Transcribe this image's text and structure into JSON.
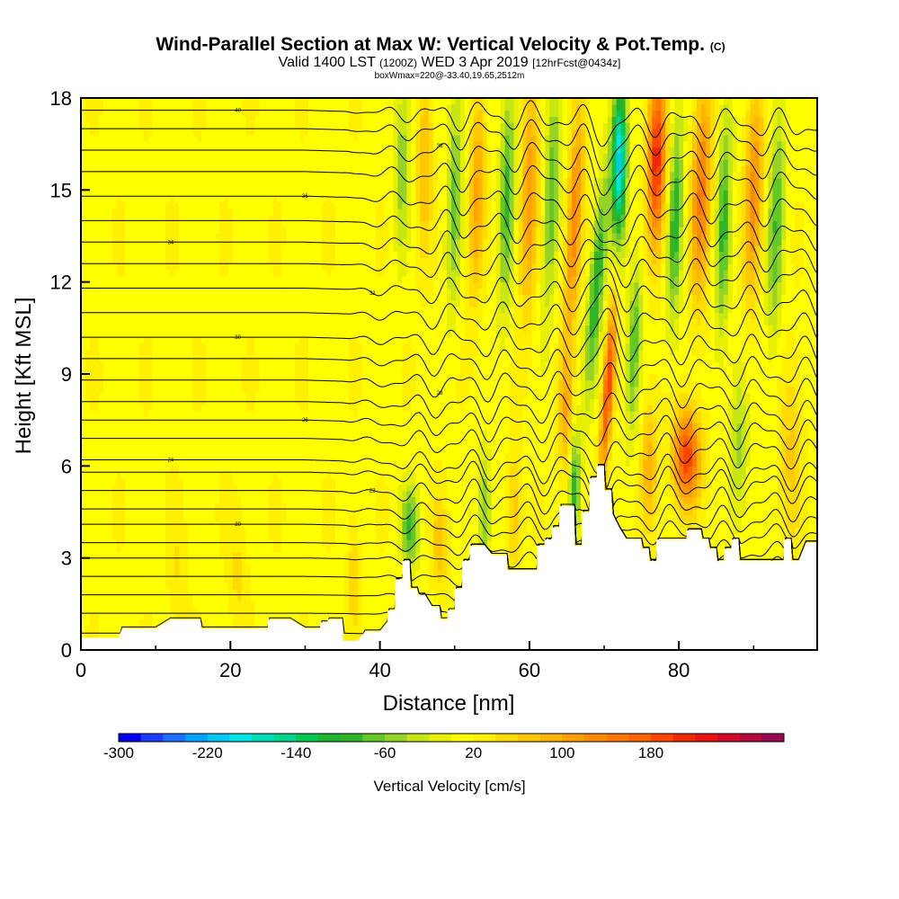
{
  "chart_data": {
    "type": "heatmap",
    "title": "Wind-Parallel Section at Max W: Vertical Velocity & Pot.Temp.",
    "title_mark": "(C)",
    "subtitle_parts": [
      "Valid 1400 LST",
      "(1200Z)",
      "WED 3 Apr 2019",
      "[12hrFcst@0434z]"
    ],
    "subtitle2": "boxWmax=220@-33.40,19.65,2512m",
    "xlabel": "Distance [nm]",
    "ylabel": "Height [Kft MSL]",
    "xlim": [
      0,
      98.5
    ],
    "ylim": [
      0,
      18
    ],
    "x_ticks": [
      0,
      20,
      40,
      60,
      80
    ],
    "y_ticks": [
      0,
      3,
      6,
      9,
      12,
      15,
      18
    ],
    "colorbar": {
      "label": "Vertical Velocity [cm/s]",
      "tick_labels": [
        "-300",
        "-220",
        "-140",
        "-60",
        "20",
        "100",
        "180"
      ],
      "tick_values": [
        -300,
        -220,
        -140,
        -60,
        20,
        100,
        180
      ],
      "bins_min": -300,
      "bin_width": 20,
      "colors": [
        "#0000f0",
        "#1e3cff",
        "#1e6eff",
        "#00a0ff",
        "#00c8f0",
        "#00e6e6",
        "#00dcb4",
        "#00d28c",
        "#00c850",
        "#1eb432",
        "#32b428",
        "#64c828",
        "#96d228",
        "#c8e614",
        "#e6f000",
        "#ffff00",
        "#fff000",
        "#ffdc00",
        "#ffc800",
        "#ffb400",
        "#ffa000",
        "#ff8c00",
        "#ff7800",
        "#ff6400",
        "#ff4600",
        "#f02800",
        "#e61414",
        "#d20a28",
        "#b40a3c",
        "#960a50"
      ]
    },
    "terrain_kft": [
      [
        0,
        0.4
      ],
      [
        3,
        0.4
      ],
      [
        5,
        0.4
      ],
      [
        5.5,
        0.7
      ],
      [
        10,
        0.7
      ],
      [
        12,
        1.0
      ],
      [
        16,
        1.0
      ],
      [
        16,
        0.7
      ],
      [
        25,
        0.7
      ],
      [
        25,
        1.0
      ],
      [
        28,
        1.0
      ],
      [
        30,
        0.7
      ],
      [
        32,
        0.7
      ],
      [
        32,
        0.9
      ],
      [
        33,
        0.9
      ],
      [
        33,
        1.0
      ],
      [
        35,
        1.0
      ],
      [
        35,
        0.3
      ],
      [
        37,
        0.3
      ],
      [
        38,
        0.6
      ],
      [
        40,
        0.6
      ],
      [
        41,
        0.9
      ],
      [
        41,
        1.3
      ],
      [
        42,
        1.3
      ],
      [
        42,
        2.3
      ],
      [
        43,
        2.3
      ],
      [
        43,
        2.9
      ],
      [
        44,
        2.9
      ],
      [
        44,
        2.0
      ],
      [
        45,
        2.0
      ],
      [
        45,
        1.8
      ],
      [
        46,
        1.8
      ],
      [
        47,
        1.4
      ],
      [
        48,
        1.4
      ],
      [
        48,
        1.0
      ],
      [
        49,
        1.0
      ],
      [
        49,
        1.3
      ],
      [
        50,
        1.3
      ],
      [
        50,
        2.0
      ],
      [
        51,
        2.0
      ],
      [
        51,
        2.9
      ],
      [
        52,
        2.9
      ],
      [
        52,
        3.4
      ],
      [
        54,
        3.4
      ],
      [
        55,
        3.1
      ],
      [
        57,
        3.1
      ],
      [
        57,
        2.6
      ],
      [
        58,
        2.6
      ],
      [
        59,
        2.6
      ],
      [
        60,
        2.6
      ],
      [
        61,
        2.6
      ],
      [
        61,
        3.4
      ],
      [
        62,
        3.4
      ],
      [
        62,
        3.6
      ],
      [
        63,
        3.6
      ],
      [
        63,
        4.0
      ],
      [
        64,
        4.0
      ],
      [
        64,
        4.7
      ],
      [
        65,
        4.7
      ],
      [
        66,
        4.7
      ],
      [
        66,
        3.4
      ],
      [
        67,
        3.4
      ],
      [
        67,
        4.5
      ],
      [
        68,
        4.5
      ],
      [
        68,
        5.6
      ],
      [
        69,
        5.6
      ],
      [
        69,
        6.0
      ],
      [
        70,
        6.0
      ],
      [
        70,
        5.2
      ],
      [
        71,
        5.2
      ],
      [
        71,
        4.5
      ],
      [
        72,
        4.0
      ],
      [
        73,
        3.6
      ],
      [
        75,
        3.6
      ],
      [
        75,
        3.3
      ],
      [
        76,
        3.3
      ],
      [
        76,
        2.9
      ],
      [
        77,
        2.9
      ],
      [
        77,
        3.6
      ],
      [
        81,
        3.6
      ],
      [
        81,
        3.9
      ],
      [
        83,
        3.9
      ],
      [
        83,
        3.6
      ],
      [
        84,
        3.6
      ],
      [
        84,
        3.3
      ],
      [
        85,
        3.3
      ],
      [
        85,
        2.9
      ],
      [
        86,
        2.9
      ],
      [
        86,
        3.3
      ],
      [
        87,
        3.3
      ],
      [
        87,
        3.6
      ],
      [
        88,
        3.6
      ],
      [
        88,
        2.9
      ],
      [
        94,
        2.9
      ],
      [
        94,
        3.6
      ],
      [
        95,
        3.6
      ],
      [
        95,
        2.9
      ],
      [
        96,
        2.9
      ],
      [
        97,
        3.5
      ],
      [
        98.5,
        3.5
      ]
    ],
    "w_features": [
      {
        "x": 77,
        "y": 16,
        "w": 200,
        "sx": 1.2,
        "sy": 2.8,
        "tilt": 0.05
      },
      {
        "x": 72,
        "y": 16,
        "w": -220,
        "sx": 1.0,
        "sy": 2.6,
        "tilt": 0.05
      },
      {
        "x": 70.5,
        "y": 8.5,
        "w": 180,
        "sx": 0.7,
        "sy": 2.8,
        "tilt": 0.25
      },
      {
        "x": 69,
        "y": 12,
        "w": -120,
        "sx": 1.0,
        "sy": 3.5,
        "tilt": 0.3
      },
      {
        "x": 81,
        "y": 6.3,
        "w": 180,
        "sx": 1.8,
        "sy": 1.5,
        "tilt": 0
      },
      {
        "x": 83,
        "y": 15,
        "w": 130,
        "sx": 1.3,
        "sy": 3.5,
        "tilt": 0.1
      },
      {
        "x": 86,
        "y": 14,
        "w": -100,
        "sx": 1.0,
        "sy": 4,
        "tilt": 0.1
      },
      {
        "x": 90,
        "y": 15,
        "w": 110,
        "sx": 1.2,
        "sy": 3.5,
        "tilt": 0.1
      },
      {
        "x": 93,
        "y": 14,
        "w": -90,
        "sx": 1.1,
        "sy": 4,
        "tilt": 0.1
      },
      {
        "x": 79.5,
        "y": 14,
        "w": -110,
        "sx": 1.0,
        "sy": 3.5,
        "tilt": 0.1
      },
      {
        "x": 74,
        "y": 10,
        "w": -90,
        "sx": 0.9,
        "sy": 3,
        "tilt": 0.15
      },
      {
        "x": 66,
        "y": 14,
        "w": 120,
        "sx": 1.0,
        "sy": 4,
        "tilt": 0.2
      },
      {
        "x": 63,
        "y": 15,
        "w": -90,
        "sx": 1.0,
        "sy": 4,
        "tilt": 0.15
      },
      {
        "x": 60,
        "y": 15,
        "w": 100,
        "sx": 1.1,
        "sy": 4,
        "tilt": 0.1
      },
      {
        "x": 57,
        "y": 15,
        "w": -100,
        "sx": 1.0,
        "sy": 4,
        "tilt": 0.1
      },
      {
        "x": 53,
        "y": 15,
        "w": 90,
        "sx": 1.0,
        "sy": 3.5,
        "tilt": 0.1
      },
      {
        "x": 50,
        "y": 15,
        "w": -80,
        "sx": 1.0,
        "sy": 4,
        "tilt": 0.1
      },
      {
        "x": 46,
        "y": 16,
        "w": 70,
        "sx": 1.0,
        "sy": 3,
        "tilt": 0.05
      },
      {
        "x": 43,
        "y": 16,
        "w": -70,
        "sx": 1.0,
        "sy": 3,
        "tilt": 0.05
      },
      {
        "x": 44,
        "y": 4.0,
        "w": -100,
        "sx": 1.2,
        "sy": 1.3,
        "tilt": 0
      },
      {
        "x": 48,
        "y": 3.5,
        "w": 60,
        "sx": 1.0,
        "sy": 1.5,
        "tilt": 0
      },
      {
        "x": 54,
        "y": 4.5,
        "w": -80,
        "sx": 0.9,
        "sy": 2,
        "tilt": 0
      },
      {
        "x": 58,
        "y": 4.5,
        "w": 60,
        "sx": 0.9,
        "sy": 2,
        "tilt": 0
      },
      {
        "x": 66,
        "y": 5.5,
        "w": -110,
        "sx": 0.8,
        "sy": 2,
        "tilt": 0
      },
      {
        "x": 65,
        "y": 7.5,
        "w": 80,
        "sx": 1.0,
        "sy": 2,
        "tilt": 0
      },
      {
        "x": 36.5,
        "y": 2.5,
        "w": 40,
        "sx": 0.8,
        "sy": 2,
        "tilt": 0
      },
      {
        "x": 21,
        "y": 2.5,
        "w": 30,
        "sx": 1.2,
        "sy": 2,
        "tilt": 0
      },
      {
        "x": 13,
        "y": 2.5,
        "w": 25,
        "sx": 1.2,
        "sy": 2,
        "tilt": 0
      },
      {
        "x": 88,
        "y": 6.5,
        "w": -60,
        "sx": 1.2,
        "sy": 2.5,
        "tilt": 0
      },
      {
        "x": 95,
        "y": 6.5,
        "w": 50,
        "sx": 1.5,
        "sy": 3,
        "tilt": 0
      },
      {
        "x": 76,
        "y": 6,
        "w": 80,
        "sx": 1.0,
        "sy": 2,
        "tilt": 0
      }
    ],
    "theta_contours": [
      {
        "y0": 0.55,
        "amp": 0.15,
        "label": ""
      },
      {
        "y0": 1.2,
        "amp": 0.3,
        "label": ""
      },
      {
        "y0": 1.8,
        "amp": 0.4,
        "label": ""
      },
      {
        "y0": 2.4,
        "amp": 0.5,
        "label": ""
      },
      {
        "y0": 3.0,
        "amp": 0.6,
        "label": ""
      },
      {
        "y0": 3.5,
        "amp": 0.7,
        "label": ""
      },
      {
        "y0": 4.1,
        "amp": 0.8,
        "label": "20"
      },
      {
        "y0": 4.6,
        "amp": 0.9,
        "label": ""
      },
      {
        "y0": 5.2,
        "amp": 1.0,
        "label": "22"
      },
      {
        "y0": 5.8,
        "amp": 1.0,
        "label": ""
      },
      {
        "y0": 6.2,
        "amp": 1.0,
        "label": "24"
      },
      {
        "y0": 6.9,
        "amp": 1.0,
        "label": ""
      },
      {
        "y0": 7.5,
        "amp": 1.0,
        "label": "26"
      },
      {
        "y0": 8.1,
        "amp": 1.0,
        "label": ""
      },
      {
        "y0": 8.8,
        "amp": 1.0,
        "label": "28"
      },
      {
        "y0": 9.5,
        "amp": 1.0,
        "label": ""
      },
      {
        "y0": 10.2,
        "amp": 1.0,
        "label": "30"
      },
      {
        "y0": 11.0,
        "amp": 1.0,
        "label": ""
      },
      {
        "y0": 11.8,
        "amp": 1.0,
        "label": "32"
      },
      {
        "y0": 12.6,
        "amp": 1.0,
        "label": ""
      },
      {
        "y0": 13.3,
        "amp": 1.0,
        "label": "34"
      },
      {
        "y0": 14.0,
        "amp": 1.0,
        "label": ""
      },
      {
        "y0": 14.8,
        "amp": 1.0,
        "label": "36"
      },
      {
        "y0": 15.6,
        "amp": 1.0,
        "label": ""
      },
      {
        "y0": 16.3,
        "amp": 1.0,
        "label": "38"
      },
      {
        "y0": 17.0,
        "amp": 1.0,
        "label": ""
      },
      {
        "y0": 17.6,
        "amp": 1.0,
        "label": "40"
      }
    ]
  }
}
